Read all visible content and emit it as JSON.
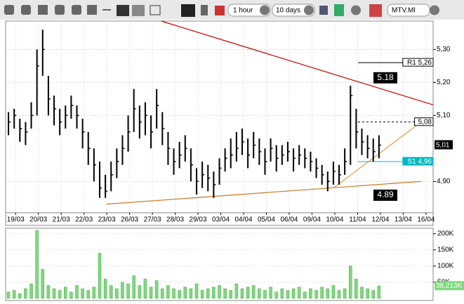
{
  "toolbar": {
    "interval": "1 hour",
    "range": "10 days",
    "symbol": "MTV.MI"
  },
  "chart_data": [
    {
      "type": "ohlc",
      "color": "#000000",
      "x": [
        0,
        1,
        2,
        3,
        4,
        5,
        6,
        7,
        8,
        9,
        10,
        11,
        12,
        13,
        14,
        15,
        16,
        17,
        18,
        19,
        20,
        21,
        22,
        23,
        24,
        25,
        26,
        27,
        28,
        29,
        30,
        31,
        32,
        33,
        34,
        35,
        36,
        37,
        38,
        39,
        40,
        41,
        42,
        43,
        44,
        45,
        46,
        47,
        48,
        49,
        50,
        51,
        52,
        53,
        54,
        55,
        56,
        57,
        58,
        59,
        60,
        61,
        62,
        63,
        64,
        65
      ],
      "high": [
        5.11,
        5.12,
        5.09,
        5.08,
        5.14,
        5.3,
        5.36,
        5.22,
        5.16,
        5.12,
        5.13,
        5.16,
        5.13,
        5.09,
        5.05,
        5.0,
        4.96,
        4.92,
        4.96,
        5.0,
        5.04,
        5.1,
        5.18,
        5.13,
        5.14,
        5.1,
        5.18,
        5.11,
        5.05,
        5.0,
        5.02,
        5.04,
        5.0,
        4.94,
        4.96,
        4.95,
        4.93,
        4.97,
        5.0,
        5.03,
        5.05,
        5.06,
        5.03,
        5.05,
        5.03,
        5.0,
        5.03,
        5.01,
        5.01,
        5.02,
        5.0,
        5.01,
        5.0,
        4.99,
        4.97,
        4.95,
        4.93,
        4.96,
        4.95,
        5.0,
        5.19,
        5.12,
        5.06,
        5.04,
        5.03,
        5.04
      ],
      "low": [
        5.04,
        5.06,
        5.02,
        5.01,
        5.06,
        5.1,
        5.22,
        5.1,
        5.07,
        5.04,
        5.06,
        5.09,
        5.06,
        5.0,
        4.95,
        4.9,
        4.85,
        4.85,
        4.87,
        4.91,
        4.95,
        4.99,
        5.05,
        5.03,
        5.04,
        5.0,
        5.06,
        5.01,
        4.95,
        4.92,
        4.94,
        4.96,
        4.9,
        4.86,
        4.88,
        4.87,
        4.85,
        4.89,
        4.93,
        4.94,
        4.96,
        4.98,
        4.94,
        4.97,
        4.95,
        4.92,
        4.96,
        4.93,
        4.95,
        4.96,
        4.93,
        4.95,
        4.94,
        4.93,
        4.91,
        4.89,
        4.87,
        4.89,
        4.89,
        4.92,
        4.95,
        5.0,
        4.98,
        4.97,
        4.96,
        4.97
      ],
      "close": [
        5.08,
        5.1,
        5.06,
        5.05,
        5.1,
        5.25,
        5.3,
        5.15,
        5.12,
        5.08,
        5.1,
        5.13,
        5.1,
        5.05,
        5.0,
        4.95,
        4.88,
        4.87,
        4.92,
        4.96,
        5.0,
        5.05,
        5.12,
        5.08,
        5.1,
        5.05,
        5.13,
        5.06,
        5.0,
        4.96,
        4.98,
        5.0,
        4.95,
        4.9,
        4.92,
        4.91,
        4.89,
        4.94,
        4.97,
        4.98,
        5.0,
        5.02,
        4.98,
        5.01,
        4.99,
        4.96,
        5.0,
        4.97,
        4.98,
        4.99,
        4.97,
        4.98,
        4.97,
        4.96,
        4.94,
        4.92,
        4.9,
        4.93,
        4.92,
        4.96,
        5.16,
        5.05,
        5.02,
        5.0,
        4.99,
        5.01
      ],
      "xlim": [
        -0.5,
        74.5
      ],
      "xticks": [
        {
          "value": 1.25,
          "label": "19/03"
        },
        {
          "value": 5.25,
          "label": "20/03"
        },
        {
          "value": 9.25,
          "label": "21/03"
        },
        {
          "value": 13.25,
          "label": "22/03"
        },
        {
          "value": 17.25,
          "label": "23/03"
        },
        {
          "value": 21.25,
          "label": "26/03"
        },
        {
          "value": 25.25,
          "label": "27/03"
        },
        {
          "value": 29.25,
          "label": "28/03"
        },
        {
          "value": 33.25,
          "label": "29/03"
        },
        {
          "value": 37.25,
          "label": "03/04"
        },
        {
          "value": 41.25,
          "label": "04/04"
        },
        {
          "value": 45.25,
          "label": "05/04"
        },
        {
          "value": 49.25,
          "label": "06/04"
        },
        {
          "value": 53.25,
          "label": "09/04"
        },
        {
          "value": 57.25,
          "label": "10/04"
        },
        {
          "value": 61.25,
          "label": "11/04"
        },
        {
          "value": 65.25,
          "label": "12/04"
        },
        {
          "value": 69.25,
          "label": "13/04"
        },
        {
          "value": 73.25,
          "label": "16/04"
        }
      ],
      "ylim": [
        4.805,
        5.386
      ],
      "yticks": [
        {
          "value": 4.9,
          "label": "4,90"
        },
        {
          "value": 5.1,
          "label": "5,10"
        },
        {
          "value": 5.2,
          "label": "5,20"
        },
        {
          "value": 5.3,
          "label": "5,30"
        }
      ],
      "grid": true,
      "trendlines": [
        {
          "color": "#cc0000",
          "x": [
            26.8,
            74.5
          ],
          "y": [
            5.386,
            5.132
          ]
        },
        {
          "color": "#c87820",
          "x": [
            17.2,
            72.4
          ],
          "y": [
            4.831,
            4.9
          ]
        },
        {
          "color": "#e0a040",
          "x": [
            57,
            72.4
          ],
          "y": [
            4.88,
            5.08
          ]
        }
      ],
      "levels": [
        {
          "label": "R1 5,26",
          "value": 5.26,
          "color": "#000000"
        },
        {
          "label": "5,08",
          "value": 5.08,
          "color": "#000000"
        },
        {
          "label": "S1 4,96",
          "value": 4.96,
          "color": "#00b8c0"
        }
      ],
      "last_price": {
        "label": "5,01",
        "value": 5.01
      },
      "annotations": [
        {
          "label": "5.18",
          "value": 5.18
        },
        {
          "label": "4.89",
          "value": 4.89
        }
      ]
    },
    {
      "type": "volume",
      "color": "#80d880",
      "values": [
        20,
        25,
        15,
        30,
        45,
        210,
        90,
        40,
        30,
        25,
        35,
        20,
        40,
        30,
        25,
        35,
        140,
        60,
        40,
        30,
        50,
        45,
        70,
        40,
        60,
        35,
        55,
        30,
        40,
        30,
        25,
        35,
        30,
        45,
        25,
        30,
        35,
        40,
        30,
        25,
        45,
        30,
        35,
        40,
        30,
        25,
        35,
        20,
        30,
        25,
        30,
        35,
        20,
        30,
        25,
        35,
        30,
        40,
        25,
        30,
        100,
        60,
        35,
        30,
        25,
        38.213
      ],
      "ylim": [
        0,
        217
      ],
      "yticks": [
        {
          "value": 50,
          "label": "50K"
        },
        {
          "value": 100,
          "label": "100K"
        },
        {
          "value": 150,
          "label": "150K"
        },
        {
          "value": 200,
          "label": "200K"
        }
      ],
      "last_value": {
        "label": "38,213K",
        "value": 38.213
      }
    }
  ]
}
